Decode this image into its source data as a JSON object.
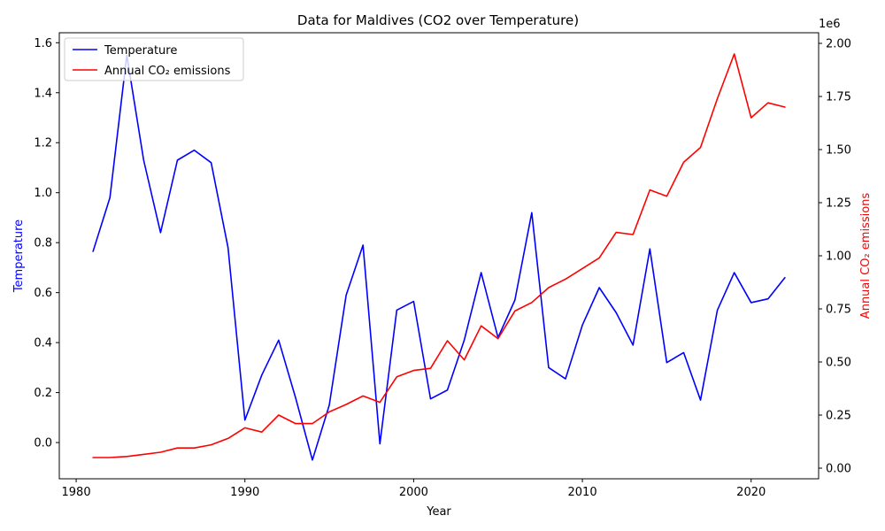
{
  "chart_data": {
    "type": "line",
    "title": "Data for Maldives (CO2 over Temperature)",
    "xlabel": "Year",
    "ylabel_left": "Temperature",
    "ylabel_right": "Annual CO₂ emissions",
    "right_axis_offset_text": "1e6",
    "xlim": [
      1979,
      2024
    ],
    "ylim_left": [
      -0.145,
      1.64
    ],
    "ylim_right": [
      -0.05,
      2.05
    ],
    "x_ticks": [
      1980,
      1990,
      2000,
      2010,
      2020
    ],
    "y_ticks_left": [
      0.0,
      0.2,
      0.4,
      0.6,
      0.8,
      1.0,
      1.2,
      1.4,
      1.6
    ],
    "y_ticks_right": [
      0.0,
      0.25,
      0.5,
      0.75,
      1.0,
      1.25,
      1.5,
      1.75,
      2.0
    ],
    "legend_position": "top-left",
    "x": [
      1981,
      1982,
      1983,
      1984,
      1985,
      1986,
      1987,
      1988,
      1989,
      1990,
      1991,
      1992,
      1993,
      1994,
      1995,
      1996,
      1997,
      1998,
      1999,
      2000,
      2001,
      2002,
      2003,
      2004,
      2005,
      2006,
      2007,
      2008,
      2009,
      2010,
      2011,
      2012,
      2013,
      2014,
      2015,
      2016,
      2017,
      2018,
      2019,
      2020,
      2021,
      2022
    ],
    "series": [
      {
        "name": "Temperature",
        "axis": "left",
        "color": "#0000ff",
        "values": [
          0.765,
          0.98,
          1.55,
          1.13,
          0.84,
          1.13,
          1.17,
          1.12,
          0.78,
          0.09,
          0.27,
          0.41,
          0.18,
          -0.07,
          0.15,
          0.59,
          0.79,
          -0.005,
          0.53,
          0.565,
          0.175,
          0.21,
          0.41,
          0.68,
          0.42,
          0.57,
          0.92,
          0.3,
          0.255,
          0.47,
          0.62,
          0.52,
          0.39,
          0.775,
          0.32,
          0.36,
          0.17,
          0.53,
          0.68,
          0.56,
          0.575,
          0.66
        ]
      },
      {
        "name": "Annual CO₂ emissions",
        "axis": "right",
        "color": "#ff0000",
        "values": [
          0.05,
          0.05,
          0.055,
          0.065,
          0.075,
          0.095,
          0.095,
          0.11,
          0.14,
          0.19,
          0.17,
          0.25,
          0.21,
          0.21,
          0.265,
          0.3,
          0.34,
          0.31,
          0.43,
          0.46,
          0.47,
          0.6,
          0.51,
          0.67,
          0.61,
          0.74,
          0.78,
          0.85,
          0.89,
          0.94,
          0.99,
          1.11,
          1.1,
          1.31,
          1.28,
          1.44,
          1.51,
          1.74,
          1.95,
          1.65,
          1.72,
          1.7
        ]
      }
    ]
  }
}
